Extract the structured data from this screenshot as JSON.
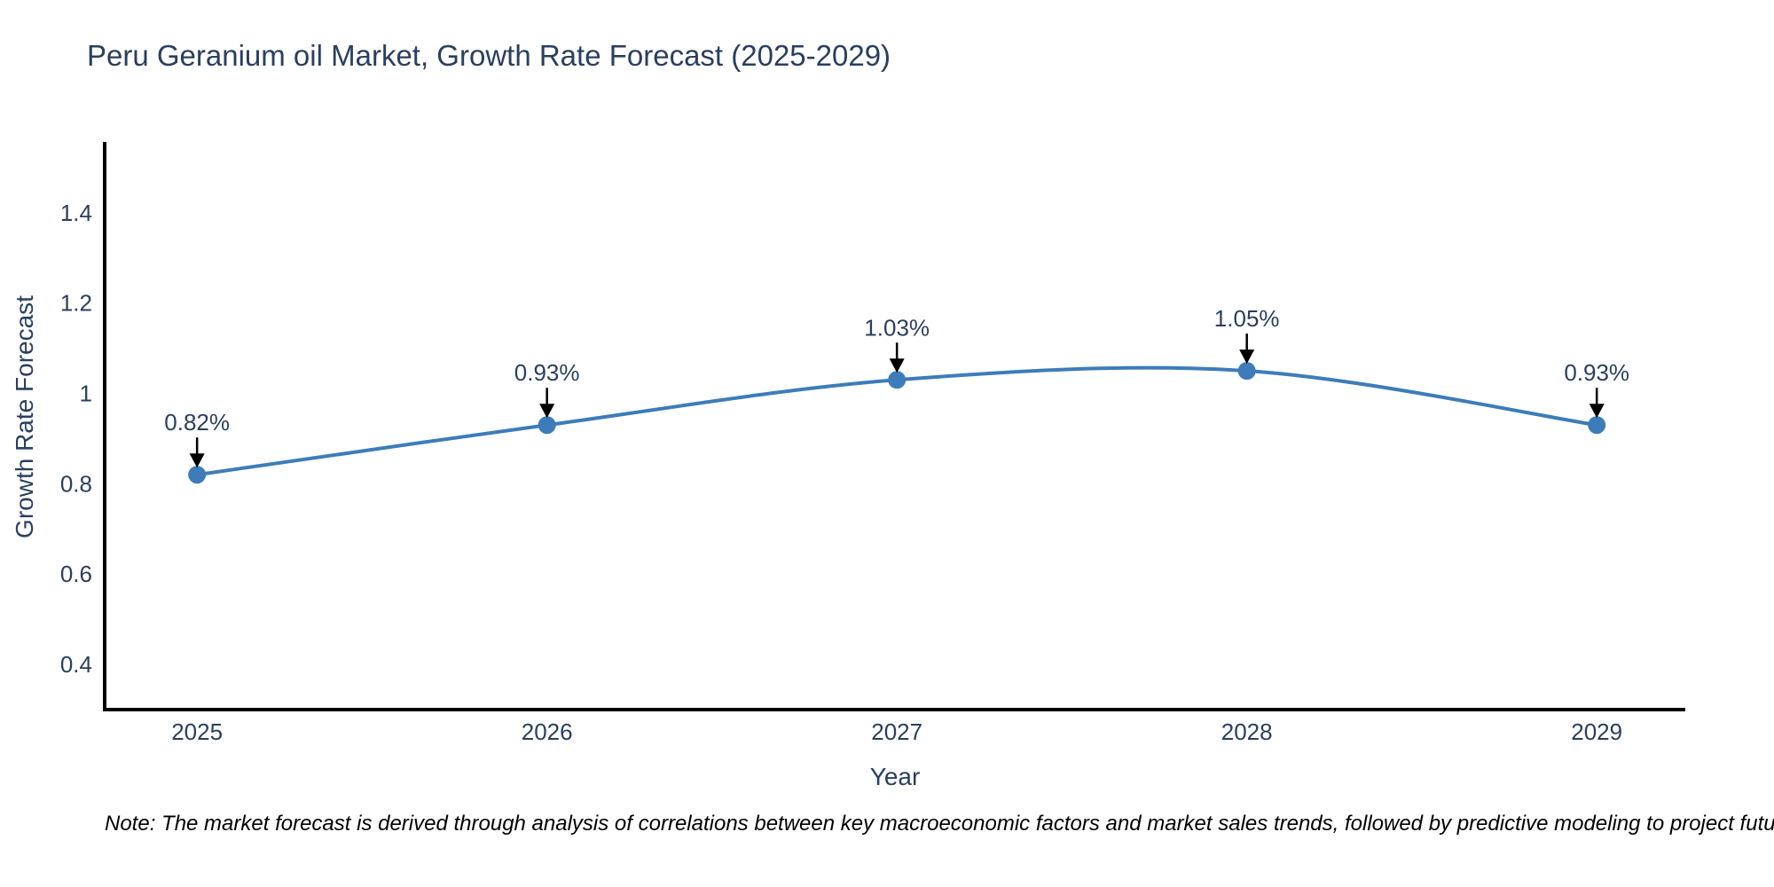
{
  "title": "Peru Geranium oil Market, Growth Rate Forecast (2025-2029)",
  "note": "Note: The market forecast is derived through analysis of correlations between key macroeconomic factors and market sales trends, followed by predictive modeling to project future sales",
  "chart_data": {
    "type": "line",
    "line_shape": "spline",
    "title": "Peru Geranium oil Market, Growth Rate Forecast (2025-2029)",
    "xlabel": "Year",
    "ylabel": "Growth Rate Forecast",
    "x": [
      2025,
      2026,
      2027,
      2028,
      2029
    ],
    "values": [
      0.82,
      0.93,
      1.03,
      1.05,
      0.93
    ],
    "point_labels": [
      "0.82%",
      "0.93%",
      "1.03%",
      "1.05%",
      "0.93%"
    ],
    "xtick_labels": [
      "2025",
      "2026",
      "2027",
      "2028",
      "2029"
    ],
    "yticks": [
      0.4,
      0.6,
      0.8,
      1,
      1.2,
      1.4
    ],
    "ytick_labels": [
      "0.4",
      "0.6",
      "0.8",
      "1",
      "1.2",
      "1.4"
    ],
    "xlim": [
      2024.736,
      2029.253
    ],
    "ylim": [
      0.3,
      1.553
    ],
    "grid": false,
    "legend": "none",
    "annotation_arrows": true,
    "colors": {
      "line": "#3d7cb9",
      "marker": "#3d7cb9",
      "axis": "#000000",
      "text": "#2a3f5f",
      "arrow": "#000000",
      "note_text": "#000000",
      "background": "#ffffff"
    }
  }
}
